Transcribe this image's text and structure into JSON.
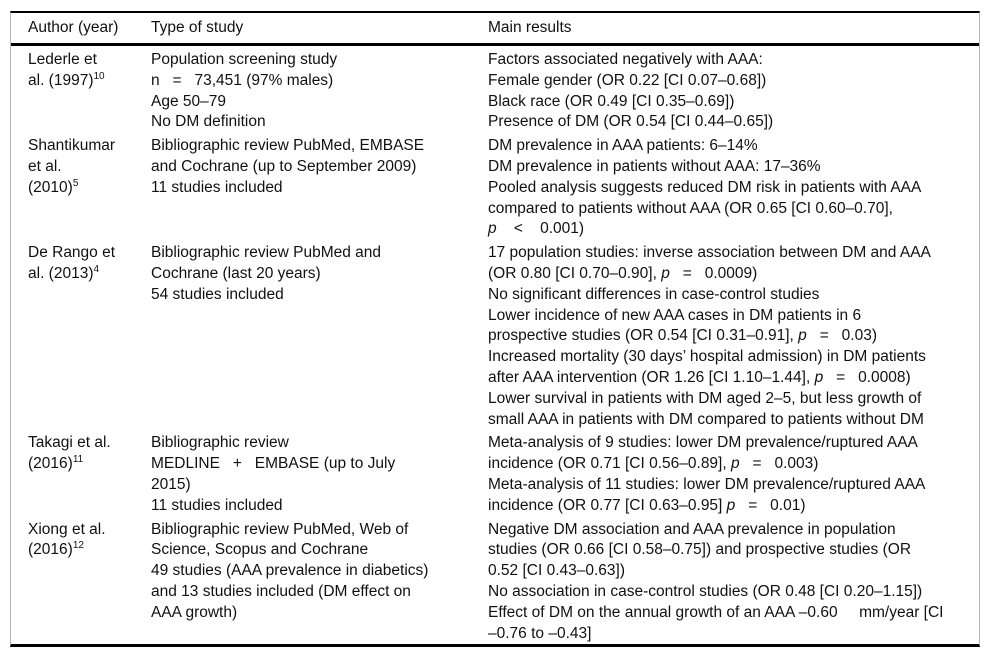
{
  "page": {
    "background_color": "#ffffff",
    "text_color": "#111111",
    "rule_color": "#000000",
    "edge_line_color": "#b5b5b5"
  },
  "table": {
    "columns": [
      {
        "label": "Author (year)"
      },
      {
        "label": "Type of study"
      },
      {
        "label": "Main results"
      }
    ],
    "rows": [
      {
        "author": [
          "Lederle et",
          "al. (1997)^{10}"
        ],
        "type": [
          "Population screening study",
          "n   =   73,451 (97% males)",
          "Age 50–79",
          "No DM definition"
        ],
        "results": [
          "Factors associated negatively with AAA:",
          "Female gender (OR 0.22 [CI 0.07–0.68])",
          "Black race (OR 0.49 [CI 0.35–0.69])",
          "Presence of DM (OR 0.54 [CI 0.44–0.65])"
        ]
      },
      {
        "author": [
          "Shantikumar",
          "et al.",
          "(2010)^{5}"
        ],
        "type": [
          "Bibliographic review PubMed, EMBASE",
          "and Cochrane (up to September 2009)",
          "11 studies included"
        ],
        "results": [
          "DM prevalence in AAA patients: 6–14%",
          "DM prevalence in patients without AAA: 17–36%",
          "Pooled analysis suggests reduced DM risk in patients with AAA",
          "compared to patients without AAA (OR 0.65 [CI 0.60–0.70],",
          "*p*    <    0.001)"
        ]
      },
      {
        "author": [
          "De Rango et",
          "al. (2013)^{4}"
        ],
        "type": [
          "Bibliographic review PubMed and",
          "Cochrane (last 20 years)",
          "54 studies included"
        ],
        "results": [
          "17 population studies: inverse association between DM and AAA",
          "(OR 0.80 [CI 0.70–0.90], *p*   =   0.0009)",
          "No significant differences in case-control studies",
          "Lower incidence of new AAA cases in DM patients in 6",
          "prospective studies (OR 0.54 [CI 0.31–0.91], *p*   =   0.03)",
          "Increased mortality (30 days’ hospital admission) in DM patients",
          "after AAA intervention (OR 1.26 [CI 1.10–1.44], *p*   =   0.0008)",
          "Lower survival in patients with DM aged 2–5, but less growth of",
          "small AAA in patients with DM compared to patients without DM"
        ]
      },
      {
        "author": [
          "Takagi et al.",
          "(2016)^{11}"
        ],
        "type": [
          "Bibliographic review",
          "MEDLINE   +   EMBASE (up to July",
          "2015)",
          "11 studies included"
        ],
        "results": [
          "Meta-analysis of 9 studies: lower DM prevalence/ruptured AAA",
          "incidence (OR 0.71 [CI 0.56–0.89], *p*   =   0.003)",
          "Meta-analysis of 11 studies: lower DM prevalence/ruptured AAA",
          "incidence (OR 0.77 [CI 0.63–0.95] *p*   =   0.01)"
        ]
      },
      {
        "author": [
          "Xiong et al.",
          "(2016)^{12}"
        ],
        "type": [
          "Bibliographic review PubMed, Web of",
          "Science, Scopus and Cochrane",
          "49 studies (AAA prevalence in diabetics)",
          "and 13 studies included (DM effect on",
          "AAA growth)"
        ],
        "results": [
          "Negative DM association and AAA prevalence in population",
          "studies (OR 0.66 [CI 0.58–0.75]) and prospective studies (OR",
          "0.52 [CI 0.43–0.63])",
          "No association in case-control studies (OR 0.48 [CI 0.20–1.15])",
          "Effect of DM on the annual growth of an AAA –0.60     mm/year [CI",
          "–0.76 to –0.43]"
        ]
      }
    ]
  }
}
